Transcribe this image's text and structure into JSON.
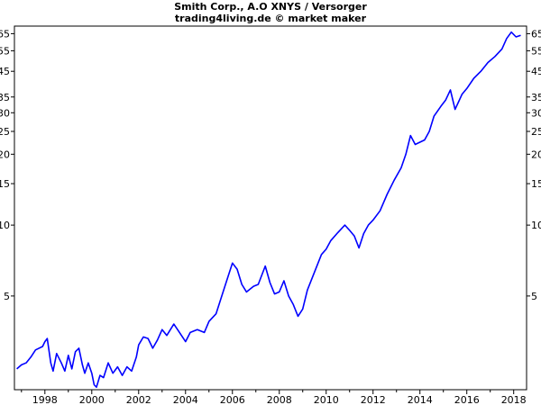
{
  "chart_data": {
    "type": "line",
    "title": "Smith Corp., A.O XNYS / Versorger",
    "subtitle": "trading4living.de © market maker",
    "xlabel": "",
    "ylabel": "",
    "y_scale": "log",
    "xlim": [
      1996.7,
      2018.55
    ],
    "ylim": [
      2.0,
      70
    ],
    "grid": false,
    "line_color": "#0000ff",
    "x_ticks": [
      "1998",
      "2000",
      "2002",
      "2004",
      "2006",
      "2008",
      "2010",
      "2012",
      "2014",
      "2016",
      "2018"
    ],
    "y_ticks": [
      "65",
      "55",
      "45",
      "35",
      "30",
      "25",
      "20",
      "15",
      "10",
      "5"
    ],
    "series": [
      {
        "name": "",
        "x": [
          1996.8,
          1997.0,
          1997.2,
          1997.4,
          1997.6,
          1997.9,
          1998.0,
          1998.1,
          1998.25,
          1998.35,
          1998.5,
          1998.7,
          1998.85,
          1999.0,
          1999.15,
          1999.3,
          1999.45,
          1999.6,
          1999.7,
          1999.85,
          2000.0,
          2000.1,
          2000.2,
          2000.35,
          2000.5,
          2000.7,
          2000.9,
          2001.1,
          2001.3,
          2001.5,
          2001.7,
          2001.9,
          2002.0,
          2002.2,
          2002.4,
          2002.6,
          2002.8,
          2003.0,
          2003.2,
          2003.5,
          2003.7,
          2004.0,
          2004.2,
          2004.5,
          2004.8,
          2005.0,
          2005.3,
          2005.6,
          2005.8,
          2006.0,
          2006.2,
          2006.4,
          2006.6,
          2006.9,
          2007.1,
          2007.4,
          2007.6,
          2007.8,
          2008.0,
          2008.2,
          2008.4,
          2008.6,
          2008.8,
          2009.0,
          2009.2,
          2009.5,
          2009.8,
          2010.0,
          2010.2,
          2010.5,
          2010.8,
          2011.0,
          2011.2,
          2011.4,
          2011.6,
          2011.8,
          2012.0,
          2012.3,
          2012.6,
          2012.9,
          2013.2,
          2013.4,
          2013.6,
          2013.8,
          2014.0,
          2014.2,
          2014.4,
          2014.6,
          2014.9,
          2015.1,
          2015.3,
          2015.5,
          2015.8,
          2016.0,
          2016.3,
          2016.6,
          2016.9,
          2017.2,
          2017.5,
          2017.7,
          2017.9,
          2018.1,
          2018.3
        ],
        "values": [
          2.45,
          2.55,
          2.6,
          2.75,
          2.95,
          3.05,
          3.2,
          3.3,
          2.6,
          2.4,
          2.85,
          2.6,
          2.4,
          2.8,
          2.45,
          2.9,
          3.0,
          2.55,
          2.35,
          2.6,
          2.35,
          2.1,
          2.05,
          2.3,
          2.25,
          2.6,
          2.35,
          2.5,
          2.3,
          2.5,
          2.4,
          2.75,
          3.1,
          3.35,
          3.3,
          3.0,
          3.25,
          3.6,
          3.4,
          3.8,
          3.55,
          3.2,
          3.5,
          3.6,
          3.5,
          3.9,
          4.2,
          5.2,
          6.0,
          6.9,
          6.5,
          5.6,
          5.2,
          5.5,
          5.6,
          6.7,
          5.7,
          5.1,
          5.2,
          5.8,
          5.0,
          4.6,
          4.1,
          4.4,
          5.3,
          6.3,
          7.5,
          7.9,
          8.6,
          9.3,
          10.0,
          9.5,
          9.0,
          8.0,
          9.2,
          10.0,
          10.5,
          11.5,
          13.5,
          15.5,
          17.5,
          20.0,
          24.0,
          22.0,
          22.5,
          23.0,
          25.0,
          29.0,
          32.0,
          34.0,
          37.5,
          31.0,
          36.0,
          38.0,
          42.0,
          45.0,
          49.0,
          52.0,
          56.0,
          62.0,
          66.0,
          63.0,
          64.0
        ]
      }
    ]
  }
}
